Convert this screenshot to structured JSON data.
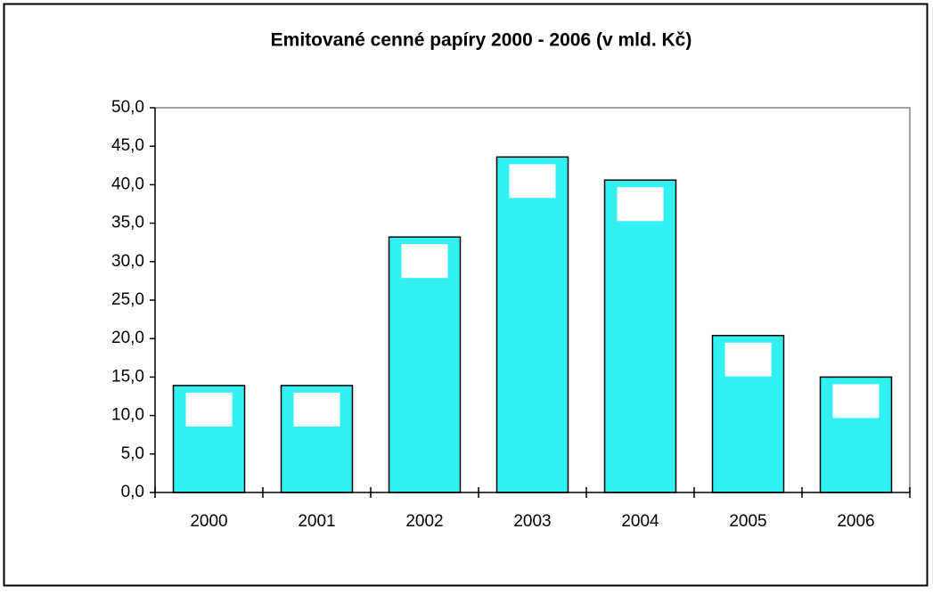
{
  "chart_data": {
    "type": "bar",
    "title": "Emitované cenné papíry 2000 - 2006 (v mld. Kč)",
    "categories": [
      "2000",
      "2001",
      "2002",
      "2003",
      "2004",
      "2005",
      "2006"
    ],
    "values": [
      13.9,
      13.9,
      33.2,
      43.6,
      40.6,
      20.4,
      15.0
    ],
    "color": "#33f0f0",
    "ylim": [
      0,
      50
    ],
    "yticks": [
      {
        "value": 0,
        "label": "0,0"
      },
      {
        "value": 5,
        "label": "5,0"
      },
      {
        "value": 10,
        "label": "10,0"
      },
      {
        "value": 15,
        "label": "15,0"
      },
      {
        "value": 20,
        "label": "20,0"
      },
      {
        "value": 25,
        "label": "25,0"
      },
      {
        "value": 30,
        "label": "30,0"
      },
      {
        "value": 35,
        "label": "35,0"
      },
      {
        "value": 40,
        "label": "40,0"
      },
      {
        "value": 45,
        "label": "45,0"
      },
      {
        "value": 50,
        "label": "50,0"
      }
    ],
    "grid": false
  }
}
